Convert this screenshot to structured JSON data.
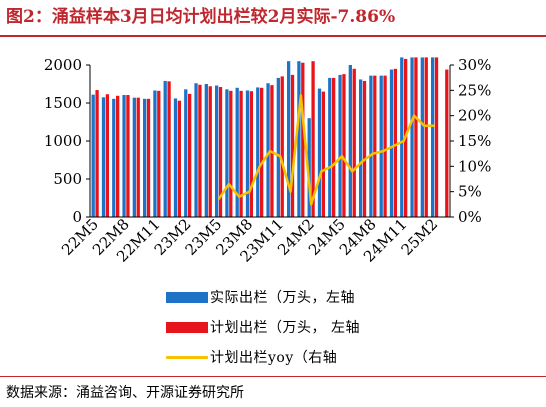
{
  "title": "图2：涌益样本3月日均计划出栏较2月实际-7.86%",
  "source": "数据来源：涌益咨询、开源证券研究所",
  "colors": {
    "actual": "#1f73c7",
    "plan": "#e8141b",
    "yoy": "#f6c100",
    "accent": "#c0262d"
  },
  "chart_data": {
    "type": "bar",
    "categories": [
      "22M5",
      "22M6",
      "22M7",
      "22M8",
      "22M9",
      "22M10",
      "22M11",
      "22M12",
      "23M1",
      "23M2",
      "23M3",
      "23M4",
      "23M5",
      "23M6",
      "23M7",
      "23M8",
      "23M9",
      "23M10",
      "23M11",
      "23M12",
      "24M1",
      "24M2",
      "24M3",
      "24M4",
      "24M5",
      "24M6",
      "24M7",
      "24M8",
      "24M9",
      "24M10",
      "24M11",
      "24M12",
      "25M1",
      "25M2",
      "25M3"
    ],
    "xtick_labels": [
      "22M5",
      "22M8",
      "22M11",
      "23M2",
      "23M5",
      "23M8",
      "23M11",
      "24M2",
      "24M5",
      "24M8",
      "24M11",
      "25M2"
    ],
    "series": [
      {
        "name": "实际出栏（万头，左轴",
        "axis": "left",
        "values": [
          1610,
          1575,
          1555,
          1605,
          1570,
          1555,
          1665,
          1790,
          1560,
          1680,
          1760,
          1750,
          1730,
          1680,
          1700,
          1665,
          1705,
          1760,
          1830,
          2050,
          2050,
          1300,
          1690,
          1830,
          1870,
          2000,
          1810,
          1860,
          1860,
          1940,
          2100,
          2100,
          2100,
          2100,
          null
        ]
      },
      {
        "name": "计划出栏（万头， 左轴",
        "axis": "left",
        "values": [
          1670,
          1615,
          1595,
          1605,
          1570,
          1555,
          1660,
          1785,
          1530,
          1620,
          1740,
          1720,
          1710,
          1660,
          1660,
          1655,
          1700,
          1735,
          1850,
          1870,
          2030,
          2050,
          1650,
          1830,
          1880,
          1950,
          1790,
          1860,
          1860,
          1950,
          2080,
          2100,
          2100,
          2100,
          1940
        ]
      },
      {
        "name": "计划出栏yoy（右轴",
        "axis": "right",
        "values": [
          null,
          null,
          null,
          null,
          null,
          null,
          null,
          null,
          null,
          null,
          null,
          null,
          3.5,
          6.5,
          4,
          5,
          10,
          13,
          12,
          5,
          24,
          2.5,
          9,
          10,
          12,
          9,
          11,
          12.5,
          13,
          14,
          15,
          20,
          18,
          18,
          null
        ]
      }
    ],
    "left_axis": {
      "min": 0,
      "max": 2000,
      "ticks": [
        0,
        500,
        1000,
        1500,
        2000
      ],
      "clip_max": 2100
    },
    "right_axis": {
      "min": 0,
      "max": 30,
      "ticks": [
        "0%",
        "5%",
        "10%",
        "15%",
        "20%",
        "25%",
        "30%"
      ]
    },
    "legend_position": "bottom"
  }
}
